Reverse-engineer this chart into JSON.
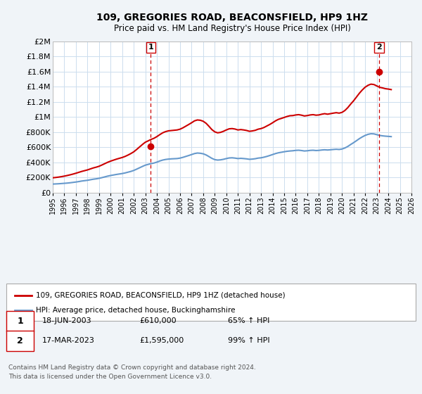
{
  "title": "109, GREGORIES ROAD, BEACONSFIELD, HP9 1HZ",
  "subtitle": "Price paid vs. HM Land Registry's House Price Index (HPI)",
  "ylim": [
    0,
    2000000
  ],
  "yticks": [
    0,
    200000,
    400000,
    600000,
    800000,
    1000000,
    1200000,
    1400000,
    1600000,
    1800000,
    2000000
  ],
  "ytick_labels": [
    "£0",
    "£200K",
    "£400K",
    "£600K",
    "£800K",
    "£1M",
    "£1.2M",
    "£1.4M",
    "£1.6M",
    "£1.8M",
    "£2M"
  ],
  "xmin_year": 1995,
  "xmax_year": 2026,
  "xticks": [
    1995,
    1996,
    1997,
    1998,
    1999,
    2000,
    2001,
    2002,
    2003,
    2004,
    2005,
    2006,
    2007,
    2008,
    2009,
    2010,
    2011,
    2012,
    2013,
    2014,
    2015,
    2016,
    2017,
    2018,
    2019,
    2020,
    2021,
    2022,
    2023,
    2024,
    2025,
    2026
  ],
  "red_line_color": "#cc0000",
  "blue_line_color": "#6699cc",
  "vline_color": "#cc0000",
  "marker1_x": 2003.46,
  "marker1_y": 610000,
  "marker2_x": 2023.21,
  "marker2_y": 1595000,
  "legend_label_red": "109, GREGORIES ROAD, BEACONSFIELD, HP9 1HZ (detached house)",
  "legend_label_blue": "HPI: Average price, detached house, Buckinghamshire",
  "table_rows": [
    {
      "num": "1",
      "date": "18-JUN-2003",
      "price": "£610,000",
      "hpi": "65% ↑ HPI"
    },
    {
      "num": "2",
      "date": "17-MAR-2023",
      "price": "£1,595,000",
      "hpi": "99% ↑ HPI"
    }
  ],
  "footnote": "Contains HM Land Registry data © Crown copyright and database right 2024.\nThis data is licensed under the Open Government Licence v3.0.",
  "background_color": "#f0f4f8",
  "plot_bg_color": "#ffffff",
  "grid_color": "#ccddee",
  "hpi_blue_data_x": [
    1995.0,
    1995.25,
    1995.5,
    1995.75,
    1996.0,
    1996.25,
    1996.5,
    1996.75,
    1997.0,
    1997.25,
    1997.5,
    1997.75,
    1998.0,
    1998.25,
    1998.5,
    1998.75,
    1999.0,
    1999.25,
    1999.5,
    1999.75,
    2000.0,
    2000.25,
    2000.5,
    2000.75,
    2001.0,
    2001.25,
    2001.5,
    2001.75,
    2002.0,
    2002.25,
    2002.5,
    2002.75,
    2003.0,
    2003.25,
    2003.5,
    2003.75,
    2004.0,
    2004.25,
    2004.5,
    2004.75,
    2005.0,
    2005.25,
    2005.5,
    2005.75,
    2006.0,
    2006.25,
    2006.5,
    2006.75,
    2007.0,
    2007.25,
    2007.5,
    2007.75,
    2008.0,
    2008.25,
    2008.5,
    2008.75,
    2009.0,
    2009.25,
    2009.5,
    2009.75,
    2010.0,
    2010.25,
    2010.5,
    2010.75,
    2011.0,
    2011.25,
    2011.5,
    2011.75,
    2012.0,
    2012.25,
    2012.5,
    2012.75,
    2013.0,
    2013.25,
    2013.5,
    2013.75,
    2014.0,
    2014.25,
    2014.5,
    2014.75,
    2015.0,
    2015.25,
    2015.5,
    2015.75,
    2016.0,
    2016.25,
    2016.5,
    2016.75,
    2017.0,
    2017.25,
    2017.5,
    2017.75,
    2018.0,
    2018.25,
    2018.5,
    2018.75,
    2019.0,
    2019.25,
    2019.5,
    2019.75,
    2020.0,
    2020.25,
    2020.5,
    2020.75,
    2021.0,
    2021.25,
    2021.5,
    2021.75,
    2022.0,
    2022.25,
    2022.5,
    2022.75,
    2023.0,
    2023.25,
    2023.5,
    2023.75,
    2024.0,
    2024.25
  ],
  "hpi_blue_data_y": [
    115000,
    117000,
    119000,
    122000,
    125000,
    128000,
    132000,
    137000,
    142000,
    148000,
    155000,
    160000,
    165000,
    172000,
    179000,
    184000,
    191000,
    200000,
    210000,
    220000,
    228000,
    235000,
    242000,
    248000,
    254000,
    262000,
    272000,
    282000,
    295000,
    312000,
    330000,
    348000,
    365000,
    375000,
    385000,
    393000,
    405000,
    420000,
    432000,
    440000,
    445000,
    448000,
    450000,
    452000,
    458000,
    468000,
    480000,
    492000,
    505000,
    518000,
    525000,
    522000,
    515000,
    500000,
    478000,
    455000,
    438000,
    432000,
    435000,
    442000,
    452000,
    460000,
    462000,
    458000,
    452000,
    455000,
    452000,
    448000,
    442000,
    445000,
    450000,
    458000,
    462000,
    470000,
    480000,
    492000,
    505000,
    518000,
    528000,
    535000,
    542000,
    548000,
    552000,
    555000,
    560000,
    562000,
    558000,
    552000,
    555000,
    560000,
    562000,
    558000,
    560000,
    565000,
    568000,
    565000,
    568000,
    572000,
    575000,
    572000,
    578000,
    592000,
    612000,
    638000,
    662000,
    688000,
    715000,
    738000,
    758000,
    772000,
    780000,
    778000,
    768000,
    758000,
    752000,
    748000,
    745000,
    742000
  ],
  "red_line_data_x": [
    1995.0,
    1995.25,
    1995.5,
    1995.75,
    1996.0,
    1996.25,
    1996.5,
    1996.75,
    1997.0,
    1997.25,
    1997.5,
    1997.75,
    1998.0,
    1998.25,
    1998.5,
    1998.75,
    1999.0,
    1999.25,
    1999.5,
    1999.75,
    2000.0,
    2000.25,
    2000.5,
    2000.75,
    2001.0,
    2001.25,
    2001.5,
    2001.75,
    2002.0,
    2002.25,
    2002.5,
    2002.75,
    2003.0,
    2003.25,
    2003.5,
    2003.75,
    2004.0,
    2004.25,
    2004.5,
    2004.75,
    2005.0,
    2005.25,
    2005.5,
    2005.75,
    2006.0,
    2006.25,
    2006.5,
    2006.75,
    2007.0,
    2007.25,
    2007.5,
    2007.75,
    2008.0,
    2008.25,
    2008.5,
    2008.75,
    2009.0,
    2009.25,
    2009.5,
    2009.75,
    2010.0,
    2010.25,
    2010.5,
    2010.75,
    2011.0,
    2011.25,
    2011.5,
    2011.75,
    2012.0,
    2012.25,
    2012.5,
    2012.75,
    2013.0,
    2013.25,
    2013.5,
    2013.75,
    2014.0,
    2014.25,
    2014.5,
    2014.75,
    2015.0,
    2015.25,
    2015.5,
    2015.75,
    2016.0,
    2016.25,
    2016.5,
    2016.75,
    2017.0,
    2017.25,
    2017.5,
    2017.75,
    2018.0,
    2018.25,
    2018.5,
    2018.75,
    2019.0,
    2019.25,
    2019.5,
    2019.75,
    2020.0,
    2020.25,
    2020.5,
    2020.75,
    2021.0,
    2021.25,
    2021.5,
    2021.75,
    2022.0,
    2022.25,
    2022.5,
    2022.75,
    2023.0,
    2023.25,
    2023.5,
    2023.75,
    2024.0,
    2024.25
  ],
  "red_line_data_y": [
    198000,
    202000,
    207000,
    213000,
    220000,
    228000,
    237000,
    247000,
    258000,
    270000,
    282000,
    292000,
    302000,
    315000,
    328000,
    338000,
    350000,
    367000,
    385000,
    403000,
    418000,
    431000,
    444000,
    455000,
    466000,
    480000,
    498000,
    518000,
    541000,
    572000,
    605000,
    638000,
    668000,
    686000,
    705000,
    720000,
    742000,
    768000,
    792000,
    808000,
    818000,
    822000,
    826000,
    830000,
    840000,
    858000,
    880000,
    902000,
    925000,
    950000,
    962000,
    958000,
    945000,
    918000,
    878000,
    835000,
    805000,
    792000,
    798000,
    812000,
    830000,
    845000,
    848000,
    842000,
    830000,
    835000,
    830000,
    823000,
    812000,
    817000,
    825000,
    840000,
    848000,
    862000,
    882000,
    902000,
    925000,
    950000,
    970000,
    982000,
    995000,
    1008000,
    1018000,
    1020000,
    1028000,
    1032000,
    1025000,
    1015000,
    1020000,
    1028000,
    1032000,
    1025000,
    1028000,
    1038000,
    1045000,
    1038000,
    1045000,
    1052000,
    1058000,
    1052000,
    1062000,
    1087000,
    1125000,
    1172000,
    1215000,
    1265000,
    1315000,
    1358000,
    1395000,
    1420000,
    1435000,
    1430000,
    1412000,
    1393000,
    1385000,
    1375000,
    1370000,
    1363000
  ]
}
